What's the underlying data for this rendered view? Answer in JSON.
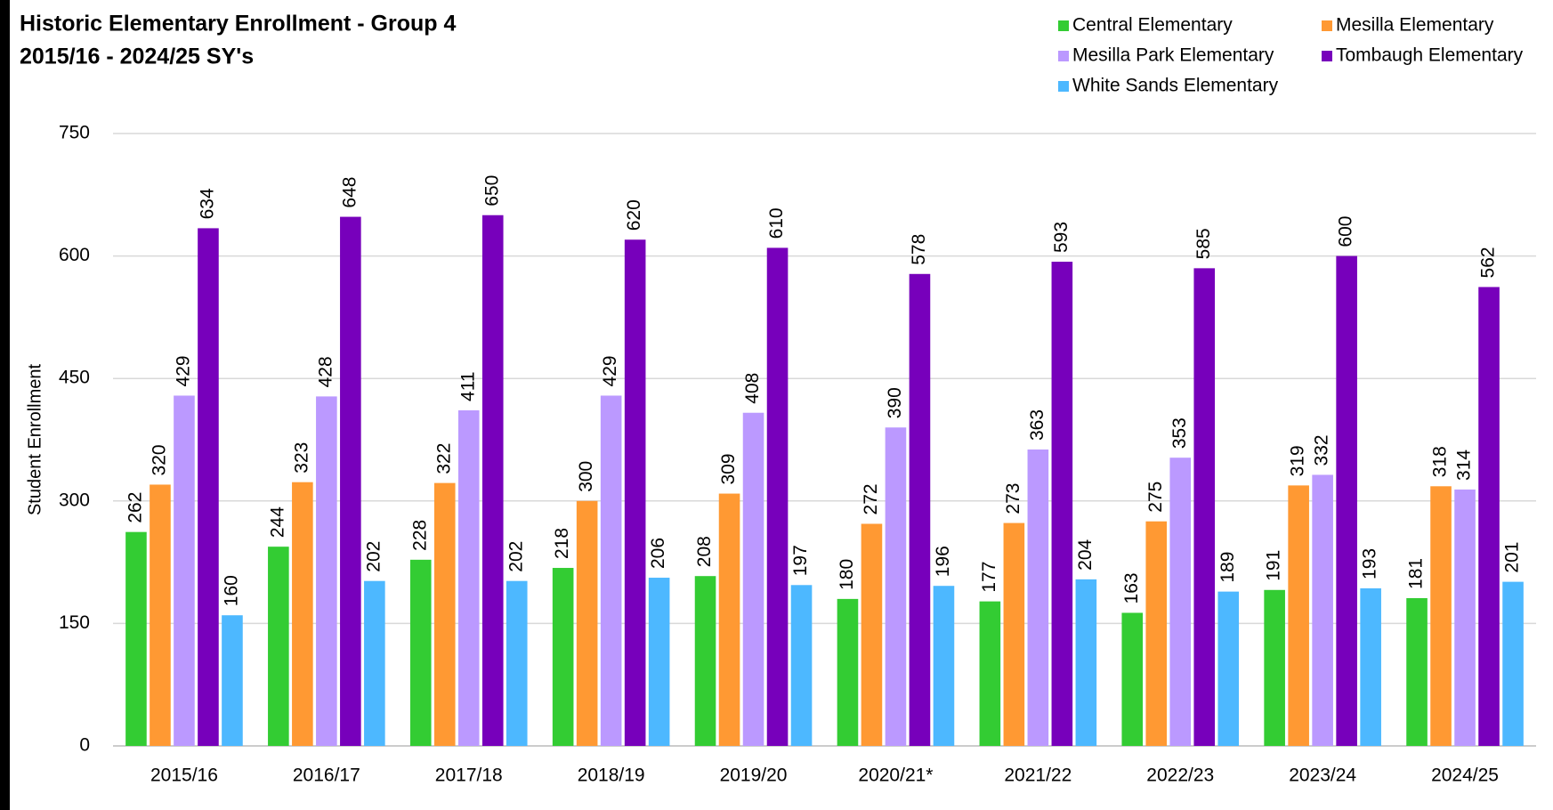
{
  "chart_data": {
    "type": "bar",
    "title": "Historic Elementary Enrollment - Group 4",
    "subtitle": "2015/16 - 2024/25 SY's",
    "y_label": "Student Enrollment",
    "categories": [
      "2015/16",
      "2016/17",
      "2017/18",
      "2018/19",
      "2019/20",
      "2020/21*",
      "2021/22",
      "2022/23",
      "2023/24",
      "2024/25"
    ],
    "series": [
      {
        "name": "Central Elementary",
        "color": "#33cc33",
        "values": [
          262,
          244,
          228,
          218,
          208,
          180,
          177,
          163,
          191,
          181
        ]
      },
      {
        "name": "Mesilla Elementary",
        "color": "#ff9933",
        "values": [
          320,
          323,
          322,
          300,
          309,
          272,
          273,
          275,
          319,
          318
        ]
      },
      {
        "name": "Mesilla Park Elementary",
        "color": "#bb99ff",
        "values": [
          429,
          428,
          411,
          429,
          408,
          390,
          363,
          353,
          332,
          314
        ]
      },
      {
        "name": "Tombaugh Elementary",
        "color": "#7700bb",
        "values": [
          634,
          648,
          650,
          620,
          610,
          578,
          593,
          585,
          600,
          562
        ]
      },
      {
        "name": "White Sands Elementary",
        "color": "#4db8ff",
        "values": [
          160,
          202,
          202,
          206,
          197,
          196,
          204,
          189,
          193,
          201
        ]
      }
    ],
    "ylim": [
      0,
      750
    ],
    "yticks": [
      0,
      150,
      300,
      450,
      600,
      750
    ],
    "grid": true,
    "legend": "top-right"
  }
}
